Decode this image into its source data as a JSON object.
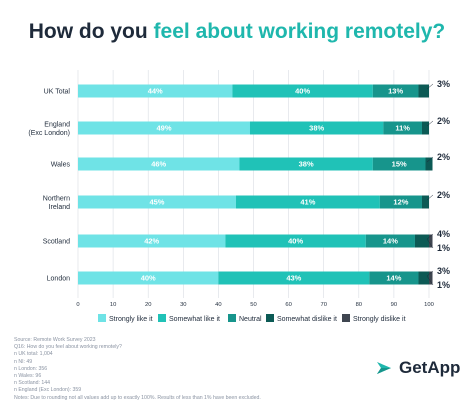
{
  "title": {
    "prefix": "How do you ",
    "highlight": "feel about working remotely?"
  },
  "colors": {
    "strongly_like": "#6fe3e6",
    "somewhat_like": "#20c2b7",
    "neutral": "#17958c",
    "somewhat_dislike": "#0c5a55",
    "strongly_dislike": "#3f4650",
    "title_accent": "#1fb7ad",
    "text_dark": "#1e2a3a"
  },
  "chart_data": {
    "type": "bar",
    "orientation": "horizontal-stacked",
    "categories": [
      "UK Total",
      "England (Exc London)",
      "Wales",
      "Northern Ireland",
      "Scotland",
      "London"
    ],
    "category_lines": [
      [
        "UK Total"
      ],
      [
        "England",
        "(Exc London)"
      ],
      [
        "Wales"
      ],
      [
        "Northern",
        "Ireland"
      ],
      [
        "Scotland"
      ],
      [
        "London"
      ]
    ],
    "series": [
      {
        "name": "Strongly like it",
        "values": [
          44,
          49,
          46,
          45,
          42,
          40
        ],
        "labels": [
          "44%",
          "49%",
          "46%",
          "45%",
          "42%",
          "40%"
        ]
      },
      {
        "name": "Somewhat like it",
        "values": [
          40,
          38,
          38,
          41,
          40,
          43
        ],
        "labels": [
          "40%",
          "38%",
          "38%",
          "41%",
          "40%",
          "43%"
        ]
      },
      {
        "name": "Neutral",
        "values": [
          13,
          11,
          15,
          12,
          14,
          14
        ],
        "labels": [
          "13%",
          "11%",
          "15%",
          "12%",
          "14%",
          "14%"
        ]
      },
      {
        "name": "Somewhat dislike it",
        "values": [
          3,
          2,
          2,
          2,
          4,
          3
        ],
        "labels": [
          "3%",
          "2%",
          "2%",
          "2%",
          "4%",
          "3%"
        ]
      },
      {
        "name": "Strongly dislike it",
        "values": [
          0,
          0,
          0,
          0,
          1,
          1
        ],
        "labels": [
          "",
          "",
          "",
          "",
          "1%",
          "1%"
        ]
      }
    ],
    "xlim": [
      0,
      100
    ],
    "xticks": [
      "0",
      "10",
      "20",
      "30",
      "40",
      "50",
      "60",
      "70",
      "80",
      "90",
      "100"
    ],
    "grid": true,
    "legend_position": "bottom"
  },
  "notes": [
    "Source: Remote Work Survey 2023",
    "Q16: How do you feel about working remotely?",
    "n UK total: 1,004",
    "n NI: 49",
    "n London: 356",
    "n Wales: 96",
    "n Scotland: 144",
    "n England (Exc London): 359",
    "Notes: Due to rounding not all values add up to exactly 100%. Results of less than 1% have been excluded."
  ],
  "brand": {
    "name": "GetApp",
    "logo_icon": "getapp-logo-icon"
  }
}
